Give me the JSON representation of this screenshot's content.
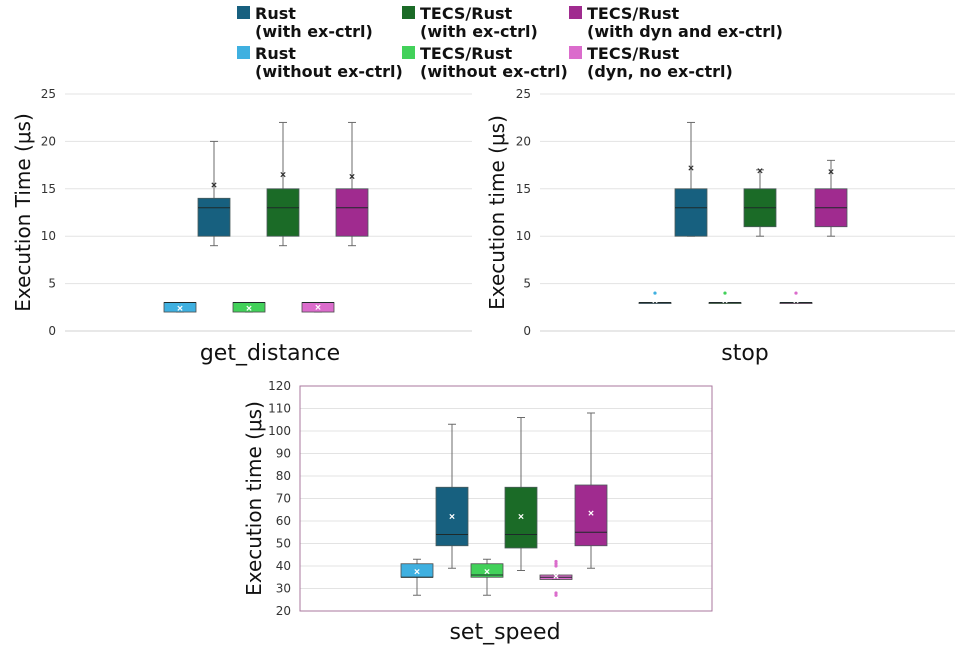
{
  "legend": [
    {
      "line1": "Rust",
      "line2": "(with ex-ctrl)",
      "color": "#17607f"
    },
    {
      "line1": "Rust",
      "line2": "(without ex-ctrl)",
      "color": "#3fb0e0"
    },
    {
      "line1": "TECS/Rust",
      "line2": "(with ex-ctrl)",
      "color": "#1b6b27"
    },
    {
      "line1": "TECS/Rust",
      "line2": "(without ex-ctrl)",
      "color": "#42d15a"
    },
    {
      "line1": "TECS/Rust",
      "line2": "(with dyn and ex-ctrl)",
      "color": "#a02b8f"
    },
    {
      "line1": "TECS/Rust",
      "line2": "(dyn, no ex-ctrl)",
      "color": "#db6ccc"
    }
  ],
  "chart_data": [
    {
      "type": "box",
      "id": "get_distance",
      "xlabel": "get_distance",
      "ylabel": "Execution Time (μs)",
      "ylim": [
        0,
        25
      ],
      "yticks": [
        0,
        5,
        10,
        15,
        20,
        25
      ],
      "series": [
        {
          "name": "Rust (with ex-ctrl)",
          "color": "#17607f",
          "min": 9,
          "q1": 10,
          "median": 13,
          "q3": 14,
          "max": 20,
          "mean": 15.4,
          "outliers": []
        },
        {
          "name": "Rust (without ex-ctrl)",
          "color": "#3fb0e0",
          "min": 2,
          "q1": 2,
          "median": 3,
          "q3": 3,
          "max": 3,
          "mean": 2.4,
          "outliers": []
        },
        {
          "name": "TECS/Rust (with ex-ctrl)",
          "color": "#1b6b27",
          "min": 9,
          "q1": 10,
          "median": 13,
          "q3": 15,
          "max": 22,
          "mean": 16.5,
          "outliers": []
        },
        {
          "name": "TECS/Rust (without ex-ctrl)",
          "color": "#42d15a",
          "min": 2,
          "q1": 2,
          "median": 3,
          "q3": 3,
          "max": 3,
          "mean": 2.4,
          "outliers": []
        },
        {
          "name": "TECS/Rust (with dyn and ex-ctrl)",
          "color": "#a02b8f",
          "min": 9,
          "q1": 10,
          "median": 13,
          "q3": 15,
          "max": 22,
          "mean": 16.3,
          "outliers": []
        },
        {
          "name": "TECS/Rust (dyn, no ex-ctrl)",
          "color": "#db6ccc",
          "min": 2,
          "q1": 2,
          "median": 3,
          "q3": 3,
          "max": 3,
          "mean": 2.5,
          "outliers": []
        }
      ]
    },
    {
      "type": "box",
      "id": "stop",
      "xlabel": "stop",
      "ylabel": "Execution time (μs)",
      "ylim": [
        0,
        25
      ],
      "yticks": [
        0,
        5,
        10,
        15,
        20,
        25
      ],
      "series": [
        {
          "name": "Rust (with ex-ctrl)",
          "color": "#17607f",
          "min": 10,
          "q1": 10,
          "median": 13,
          "q3": 15,
          "max": 22,
          "mean": 17.2,
          "outliers": []
        },
        {
          "name": "Rust (without ex-ctrl)",
          "color": "#3fb0e0",
          "min": 3,
          "q1": 3,
          "median": 3,
          "q3": 3,
          "max": 3,
          "mean": 3.2,
          "outliers": [
            4
          ]
        },
        {
          "name": "TECS/Rust (with ex-ctrl)",
          "color": "#1b6b27",
          "min": 10,
          "q1": 11,
          "median": 13,
          "q3": 15,
          "max": 17,
          "mean": 16.9,
          "outliers": []
        },
        {
          "name": "TECS/Rust (without ex-ctrl)",
          "color": "#42d15a",
          "min": 3,
          "q1": 3,
          "median": 3,
          "q3": 3,
          "max": 3,
          "mean": 3.2,
          "outliers": [
            4
          ]
        },
        {
          "name": "TECS/Rust (with dyn and ex-ctrl)",
          "color": "#a02b8f",
          "min": 10,
          "q1": 11,
          "median": 13,
          "q3": 15,
          "max": 18,
          "mean": 16.8,
          "outliers": []
        },
        {
          "name": "TECS/Rust (dyn, no ex-ctrl)",
          "color": "#db6ccc",
          "min": 3,
          "q1": 3,
          "median": 3,
          "q3": 3,
          "max": 3,
          "mean": 3.2,
          "outliers": [
            4
          ]
        }
      ]
    },
    {
      "type": "box",
      "id": "set_speed",
      "xlabel": "set_speed",
      "ylabel": "Execution time (μs)",
      "ylim": [
        20,
        120
      ],
      "yticks": [
        20,
        30,
        40,
        50,
        60,
        70,
        80,
        90,
        100,
        110,
        120
      ],
      "series": [
        {
          "name": "Rust (with ex-ctrl)",
          "color": "#17607f",
          "min": 39,
          "q1": 49,
          "median": 54,
          "q3": 75,
          "max": 103,
          "mean": 62,
          "outliers": []
        },
        {
          "name": "Rust (without ex-ctrl)",
          "color": "#3fb0e0",
          "min": 27,
          "q1": 35,
          "median": 35,
          "q3": 41,
          "max": 43,
          "mean": 37.5,
          "outliers": []
        },
        {
          "name": "TECS/Rust (with ex-ctrl)",
          "color": "#1b6b27",
          "min": 38,
          "q1": 48,
          "median": 54,
          "q3": 75,
          "max": 106,
          "mean": 62,
          "outliers": []
        },
        {
          "name": "TECS/Rust (without ex-ctrl)",
          "color": "#42d15a",
          "min": 27,
          "q1": 35,
          "median": 36,
          "q3": 41,
          "max": 43,
          "mean": 37.5,
          "outliers": []
        },
        {
          "name": "TECS/Rust (with dyn and ex-ctrl)",
          "color": "#a02b8f",
          "min": 39,
          "q1": 49,
          "median": 55,
          "q3": 76,
          "max": 108,
          "mean": 63.5,
          "outliers": []
        },
        {
          "name": "TECS/Rust (dyn, no ex-ctrl)",
          "color": "#db6ccc",
          "min": 34,
          "q1": 34,
          "median": 35,
          "q3": 36,
          "max": 36,
          "mean": 35.5,
          "outliers": [
            27,
            28,
            40,
            41,
            42
          ]
        }
      ]
    }
  ]
}
